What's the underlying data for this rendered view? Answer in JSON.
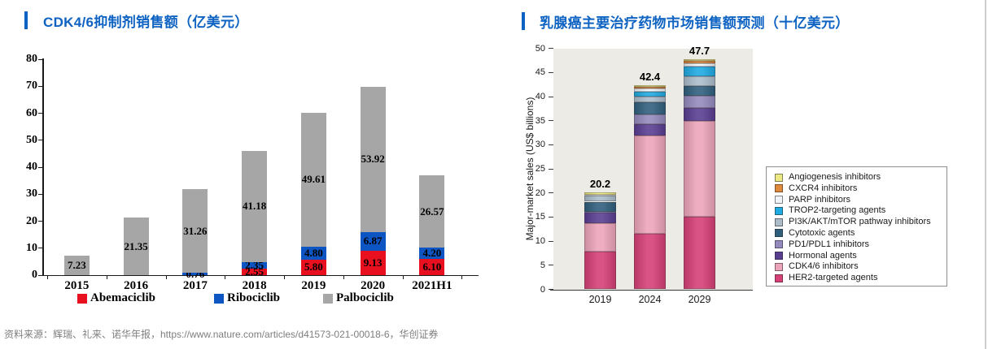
{
  "page": {
    "left_title": "CDK4/6抑制剂销售额（亿美元）",
    "right_title": "乳腺癌主要治疗药物市场销售额预测（十亿美元）",
    "source_note": "资料来源：辉瑞、礼来、诺华年报，https://www.nature.com/articles/d41573-021-00018-6，华创证券",
    "accent_color": "#0e63c2"
  },
  "chart_data": [
    {
      "type": "bar",
      "stacked": true,
      "title": "CDK4/6抑制剂销售额（亿美元）",
      "categories": [
        "2015",
        "2016",
        "2017",
        "2018",
        "2019",
        "2020",
        "2021H1"
      ],
      "series": [
        {
          "name": "Abemaciclib",
          "color": "#e8101e",
          "values": [
            0,
            0,
            0,
            2.55,
            5.8,
            9.13,
            6.1
          ]
        },
        {
          "name": "Ribociclib",
          "color": "#0d55c3",
          "values": [
            0,
            0,
            0.76,
            2.35,
            4.8,
            6.87,
            4.2
          ]
        },
        {
          "name": "Palbociclib",
          "color": "#a6a6a6",
          "values": [
            7.23,
            21.35,
            31.26,
            41.18,
            49.61,
            53.92,
            26.57
          ]
        }
      ],
      "xlabel": "",
      "ylabel": "",
      "ylim": [
        0,
        80
      ],
      "ytick_step": 10,
      "grid": false,
      "value_labels": true,
      "legend_position": "bottom"
    },
    {
      "type": "bar",
      "stacked": true,
      "title": "乳腺癌主要治疗药物市场销售额预测（十亿美元）",
      "categories": [
        "2019",
        "2024",
        "2029"
      ],
      "totals": [
        20.2,
        42.4,
        47.7
      ],
      "series": [
        {
          "name": "HER2-targeted agents",
          "color": "#d64077",
          "values": [
            7.9,
            11.5,
            15.1
          ]
        },
        {
          "name": "CDK4/6 inhibitors",
          "color": "#eda4ba",
          "values": [
            5.8,
            20.5,
            19.9
          ]
        },
        {
          "name": "Hormonal agents",
          "color": "#5a3e92",
          "values": [
            2.2,
            2.3,
            2.6
          ]
        },
        {
          "name": "PD1/PDL1 inhibitors",
          "color": "#958abd",
          "values": [
            0.2,
            2.0,
            2.6
          ]
        },
        {
          "name": "Cytotoxic agents",
          "color": "#305f7d",
          "values": [
            2.1,
            2.5,
            2.0
          ]
        },
        {
          "name": "PI3K/AKT/mTOR pathway inhibitors",
          "color": "#abbccb",
          "values": [
            1.2,
            1.3,
            2.0
          ]
        },
        {
          "name": "TROP2-targeting agents",
          "color": "#1faae2",
          "values": [
            0,
            1.0,
            2.1
          ]
        },
        {
          "name": "PARP inhibitors",
          "color": "#eef4fa",
          "values": [
            0.3,
            0.6,
            0.7
          ]
        },
        {
          "name": "CXCR4 inhibitors",
          "color": "#e0883b",
          "values": [
            0,
            0.4,
            0.4
          ]
        },
        {
          "name": "Angiogenesis inhibitors",
          "color": "#ece985",
          "values": [
            0.5,
            0.3,
            0.3
          ]
        }
      ],
      "xlabel": "",
      "ylabel": "Major-market sales (US$ billions)",
      "ylim": [
        0,
        50
      ],
      "ytick_step": 5,
      "grid": false,
      "plot_background": "#ecebe5",
      "legend_position": "right",
      "legend_order": "top-to-bottom-reverse-of-stack"
    }
  ]
}
